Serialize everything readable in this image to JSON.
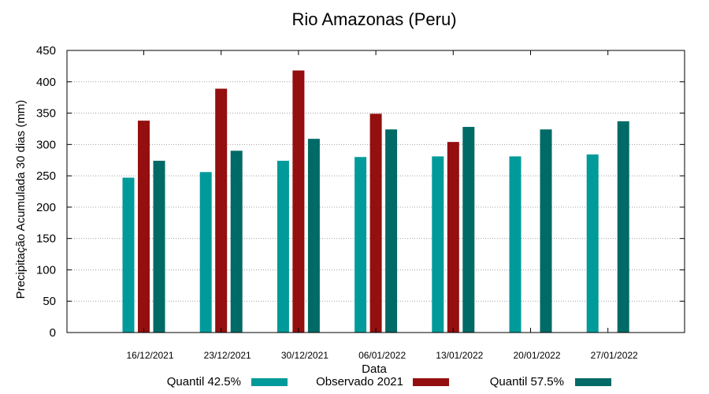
{
  "colors": {
    "q425": "#009a9a",
    "obs": "#940f0f",
    "q575": "#006a66",
    "grid": "#a0a0a0"
  },
  "chart_data": {
    "type": "bar",
    "title": "Rio Amazonas (Peru)",
    "xlabel": "Data",
    "ylabel": "Precipitação Acumulada 30 dias (mm)",
    "ylim": [
      0,
      450
    ],
    "yticks": [
      0,
      50,
      100,
      150,
      200,
      250,
      300,
      350,
      400,
      450
    ],
    "grid": true,
    "legend": "bottom",
    "categories": [
      "16/12/2021",
      "23/12/2021",
      "30/12/2021",
      "06/01/2022",
      "13/01/2022",
      "20/01/2022",
      "27/01/2022"
    ],
    "series": [
      {
        "name": "Quantil 42.5%",
        "color_key": "q425",
        "values": [
          247,
          256,
          274,
          280,
          281,
          281,
          284
        ]
      },
      {
        "name": "Observado 2021",
        "color_key": "obs",
        "values": [
          338,
          389,
          418,
          349,
          304,
          null,
          null
        ]
      },
      {
        "name": "Quantil 57.5%",
        "color_key": "q575",
        "values": [
          274,
          290,
          309,
          324,
          328,
          324,
          337
        ]
      }
    ]
  }
}
